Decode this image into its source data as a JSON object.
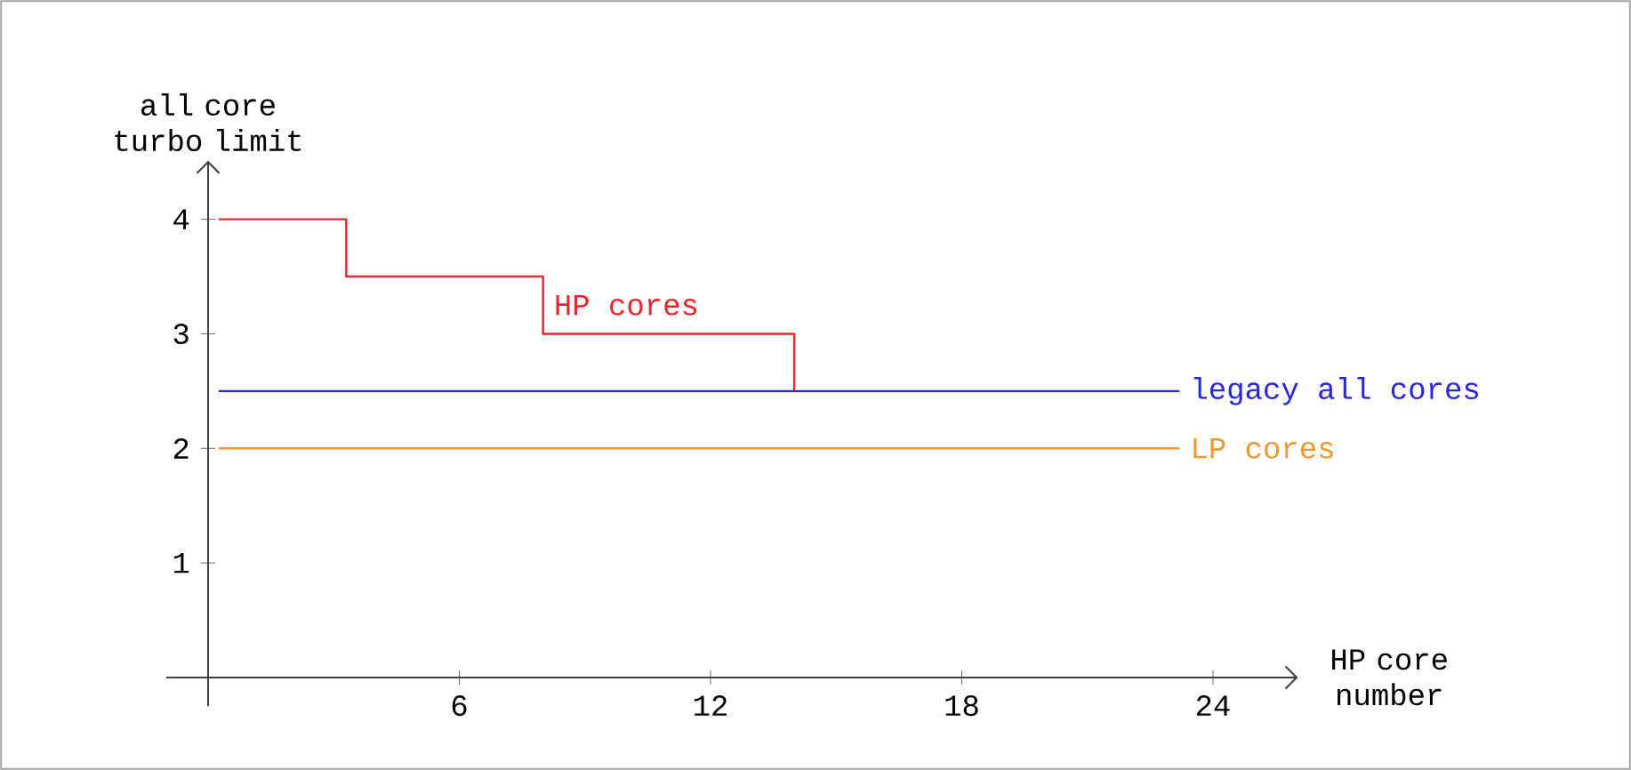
{
  "chart_data": {
    "type": "line",
    "xlabel": "HP core number",
    "ylabel": "all core turbo limit",
    "xlim": [
      -1,
      26
    ],
    "ylim": [
      -0.25,
      4.5
    ],
    "xticks": [
      6,
      12,
      18,
      24
    ],
    "yticks": [
      1,
      2,
      3,
      4
    ],
    "grid": false,
    "marker": "none",
    "series": [
      {
        "name": "HP cores",
        "type": "step",
        "color": "#e8262b",
        "x": [
          0.25,
          3.3,
          8,
          14
        ],
        "values": [
          4,
          3.5,
          3,
          2.5
        ]
      },
      {
        "name": "legacy all cores",
        "color": "#2626e6",
        "x": [
          0.25,
          23.2
        ],
        "values": [
          2.5,
          2.5
        ]
      },
      {
        "name": "LP cores",
        "color": "#f0982e",
        "x": [
          0.25,
          23.2
        ],
        "values": [
          2,
          2
        ]
      }
    ]
  }
}
